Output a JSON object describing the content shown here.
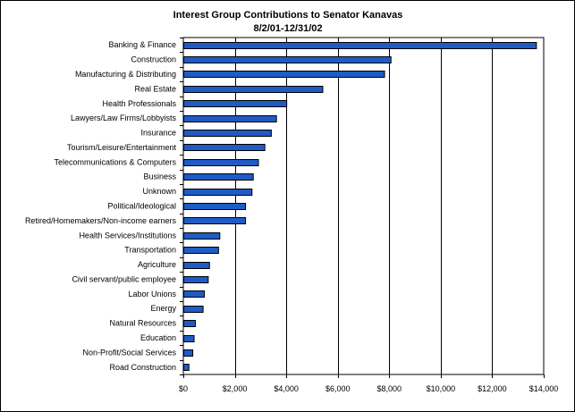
{
  "chart_data": {
    "type": "bar",
    "orientation": "horizontal",
    "title": "Interest Group Contributions to Senator Kanavas",
    "subtitle": "8/2/01-12/31/02",
    "xlabel": "",
    "ylabel": "",
    "xlim": [
      0,
      14000
    ],
    "tick_step": 2000,
    "tick_labels": [
      "$0",
      "$2,000",
      "$4,000",
      "$6,000",
      "$8,000",
      "$10,000",
      "$12,000",
      "$14,000"
    ],
    "grid": "vertical major gridlines",
    "legend": "none",
    "bar_color": "#1f5bc6",
    "bar_edge_color": "#000000",
    "categories": [
      "Banking & Finance",
      "Construction",
      "Manufacturing & Distributing",
      "Real Estate",
      "Health Professionals",
      "Lawyers/Law Firms/Lobbyists",
      "Insurance",
      "Tourism/Leisure/Entertainment",
      "Telecommunications & Computers",
      "Business",
      "Unknown",
      "Political/Ideological",
      "Retired/Homemakers/Non-income earners",
      "Health Services/Institutions",
      "Transportation",
      "Agriculture",
      "Civil servant/public employee",
      "Labor Unions",
      "Energy",
      "Natural Resources",
      "Education",
      "Non-Profit/Social Services",
      "Road Construction"
    ],
    "values": [
      13700,
      8050,
      7800,
      5400,
      4000,
      3600,
      3400,
      3150,
      2900,
      2700,
      2650,
      2400,
      2400,
      1400,
      1350,
      1000,
      950,
      800,
      750,
      450,
      400,
      350,
      200
    ]
  }
}
